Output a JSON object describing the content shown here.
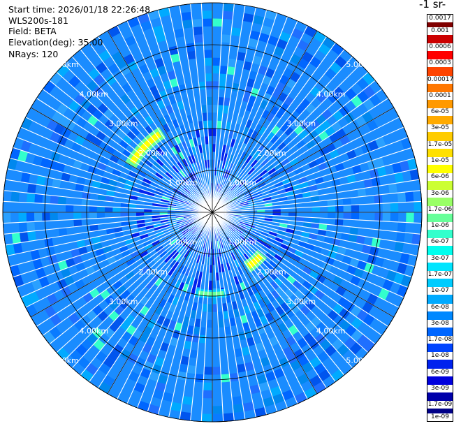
{
  "info": {
    "start_time": "Start time: 2026/01/18 22:26:48",
    "instrument": "WLS200s-181",
    "field": "Field: BETA",
    "elevation": "Elevation(deg): 35.00",
    "nrays": "NRays: 120"
  },
  "chart_data": {
    "type": "heatmap",
    "projection": "polar-ppi",
    "field": "BETA",
    "elevation_deg": 35.0,
    "n_rays": 120,
    "max_range_km": 5.0,
    "range_ring_labels": [
      "1.00km",
      "2.00km",
      "3.00km",
      "4.00km",
      "5.00km"
    ],
    "range_rings_km": [
      1,
      2,
      3,
      4,
      5
    ],
    "colorbar": {
      "title": "-1 sr-",
      "scale": "log",
      "labels": [
        "0.0017",
        "0.001",
        "0.0006",
        "0.0003",
        "0.00017",
        "0.0001",
        "6e-05",
        "3e-05",
        "1.7e-05",
        "1e-05",
        "6e-06",
        "3e-06",
        "1.7e-06",
        "1e-06",
        "6e-07",
        "3e-07",
        "1.7e-07",
        "1e-07",
        "6e-08",
        "3e-08",
        "1.7e-08",
        "1e-08",
        "6e-09",
        "3e-09",
        "1.7e-09",
        "1e-09"
      ],
      "colors": [
        "#800000",
        "#cc0000",
        "#ff0000",
        "#ff4400",
        "#ff7700",
        "#ff9900",
        "#ffaa00",
        "#ffcc00",
        "#ffe000",
        "#ffff00",
        "#ccff33",
        "#99ff66",
        "#66ff99",
        "#33ffcc",
        "#00ffee",
        "#00e5ff",
        "#00ccff",
        "#00aaff",
        "#0088ff",
        "#0066ff",
        "#0044ff",
        "#0022ee",
        "#0000dd",
        "#0000aa",
        "#000088"
      ]
    },
    "background_level": "1.7e-08 to 1e-07",
    "features": [
      {
        "description": "aerosol arc",
        "range_km": [
          2.1,
          2.4
        ],
        "azimuth_deg": [
          300,
          328
        ],
        "level": "1e-06 to 1e-05"
      },
      {
        "description": "aerosol arc",
        "range_km": [
          1.4,
          1.7
        ],
        "azimuth_deg": [
          130,
          148
        ],
        "level": "1e-06 to 1e-05"
      },
      {
        "description": "aerosol patch",
        "range_km": [
          1.85,
          2.05
        ],
        "azimuth_deg": [
          170,
          192
        ],
        "level": "3e-07 to 3e-06"
      }
    ]
  }
}
